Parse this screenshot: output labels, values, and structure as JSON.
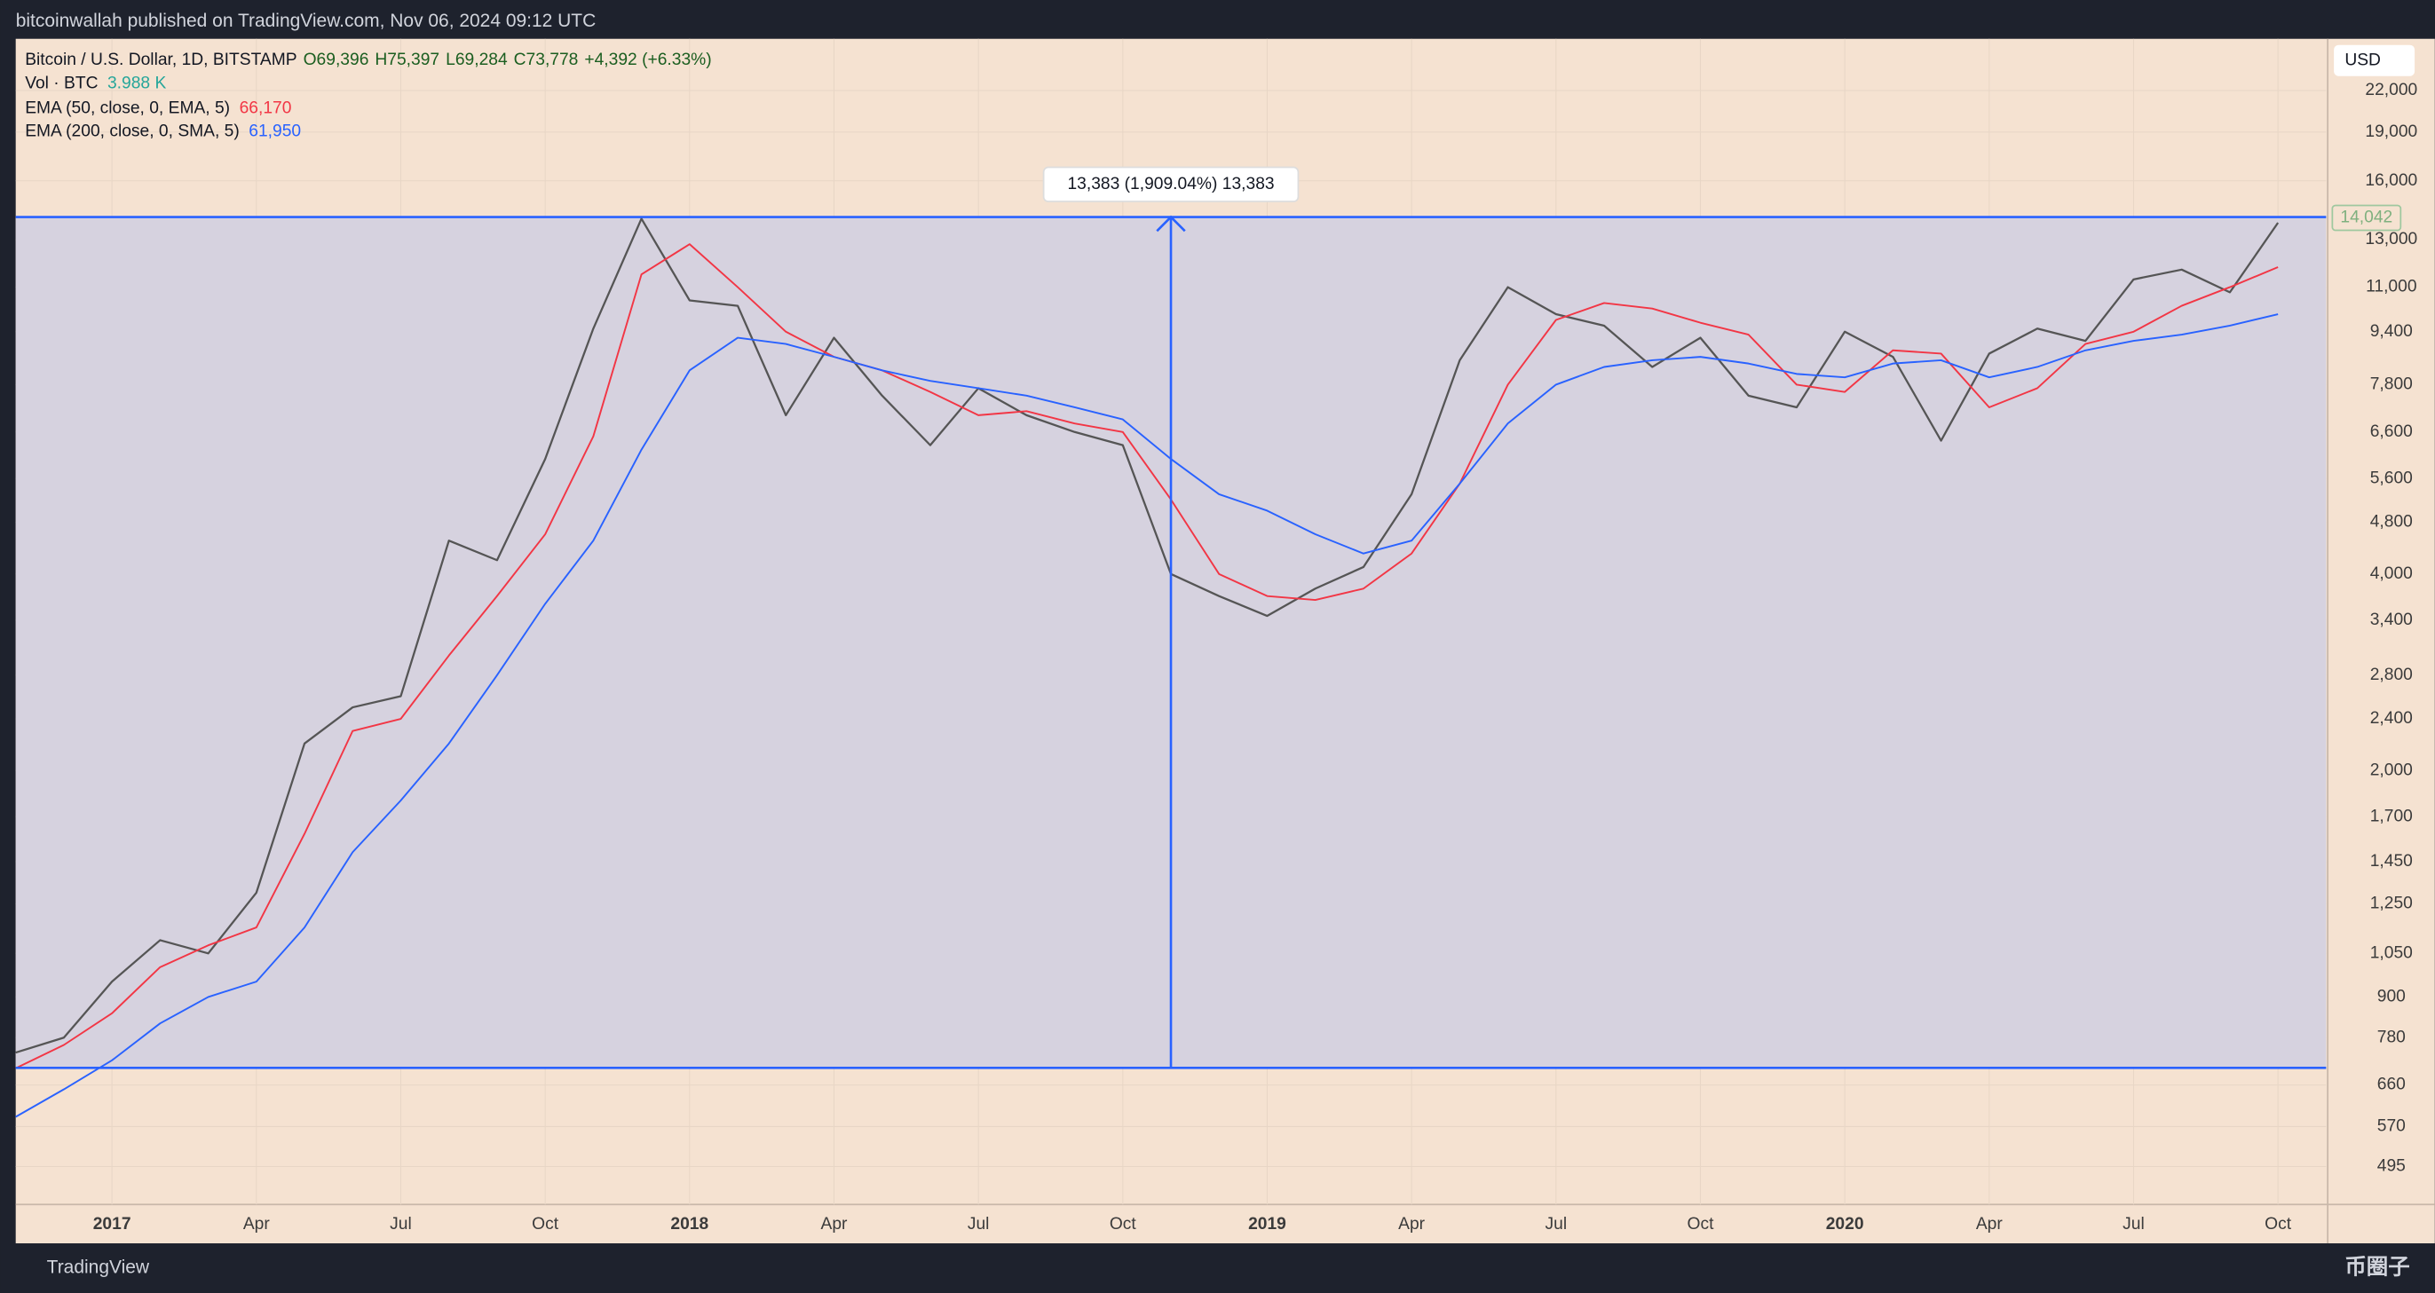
{
  "header": {
    "publisher": "bitcoinwallah published on TradingView.com, Nov 06, 2024 09:12 UTC"
  },
  "footer": {
    "brand": "TradingView",
    "watermark": "币圈子"
  },
  "chart_data": {
    "type": "line",
    "log_scale": true,
    "grid": true,
    "axis_unit": "USD",
    "x": [
      "2016-11",
      "2016-12",
      "2017-01",
      "2017-02",
      "2017-03",
      "2017-04",
      "2017-05",
      "2017-06",
      "2017-07",
      "2017-08",
      "2017-09",
      "2017-10",
      "2017-11",
      "2017-12",
      "2018-01",
      "2018-02",
      "2018-03",
      "2018-04",
      "2018-05",
      "2018-06",
      "2018-07",
      "2018-08",
      "2018-09",
      "2018-10",
      "2018-11",
      "2018-12",
      "2019-01",
      "2019-02",
      "2019-03",
      "2019-04",
      "2019-05",
      "2019-06",
      "2019-07",
      "2019-08",
      "2019-09",
      "2019-10",
      "2019-11",
      "2019-12",
      "2020-01",
      "2020-02",
      "2020-03",
      "2020-04",
      "2020-05",
      "2020-06",
      "2020-07",
      "2020-08",
      "2020-09",
      "2020-10"
    ],
    "xlim": [
      "2016-11",
      "2020-11"
    ],
    "xticks": [
      {
        "value": "2017-01",
        "label": "2017"
      },
      {
        "value": "2017-04",
        "label": "Apr"
      },
      {
        "value": "2017-07",
        "label": "Jul"
      },
      {
        "value": "2017-10",
        "label": "Oct"
      },
      {
        "value": "2018-01",
        "label": "2018"
      },
      {
        "value": "2018-04",
        "label": "Apr"
      },
      {
        "value": "2018-07",
        "label": "Jul"
      },
      {
        "value": "2018-10",
        "label": "Oct"
      },
      {
        "value": "2019-01",
        "label": "2019"
      },
      {
        "value": "2019-04",
        "label": "Apr"
      },
      {
        "value": "2019-07",
        "label": "Jul"
      },
      {
        "value": "2019-10",
        "label": "Oct"
      },
      {
        "value": "2020-01",
        "label": "2020"
      },
      {
        "value": "2020-04",
        "label": "Apr"
      },
      {
        "value": "2020-07",
        "label": "Jul"
      },
      {
        "value": "2020-10",
        "label": "Oct"
      }
    ],
    "ylim": [
      433,
      26400
    ],
    "yticks": [
      {
        "value": 22000,
        "label": "22,000"
      },
      {
        "value": 19000,
        "label": "19,000"
      },
      {
        "value": 16000,
        "label": "16,000"
      },
      {
        "value": 13000,
        "label": "13,000"
      },
      {
        "value": 11000,
        "label": "11,000"
      },
      {
        "value": 9400,
        "label": "9,400"
      },
      {
        "value": 7800,
        "label": "7,800"
      },
      {
        "value": 6600,
        "label": "6,600"
      },
      {
        "value": 5600,
        "label": "5,600"
      },
      {
        "value": 4800,
        "label": "4,800"
      },
      {
        "value": 4000,
        "label": "4,000"
      },
      {
        "value": 3400,
        "label": "3,400"
      },
      {
        "value": 2800,
        "label": "2,800"
      },
      {
        "value": 2400,
        "label": "2,400"
      },
      {
        "value": 2000,
        "label": "2,000"
      },
      {
        "value": 1700,
        "label": "1,700"
      },
      {
        "value": 1450,
        "label": "1,450"
      },
      {
        "value": 1250,
        "label": "1,250"
      },
      {
        "value": 1050,
        "label": "1,050"
      },
      900,
      780,
      660,
      570,
      495
    ],
    "series": [
      {
        "name": "Bitcoin / U.S. Dollar, 1D, BITSTAMP",
        "color": "#555555",
        "ohlc": [
          "O69,396",
          "H75,397",
          "L69,284",
          "C73,778",
          "+4,392 (+6.33%)"
        ],
        "values": [
          740,
          780,
          950,
          1100,
          1050,
          1300,
          2200,
          2500,
          2600,
          4500,
          4200,
          6000,
          9500,
          14000,
          10500,
          10300,
          7000,
          9200,
          7500,
          6300,
          7700,
          7000,
          6600,
          6300,
          4000,
          3700,
          3450,
          3800,
          4100,
          5300,
          8500,
          11000,
          10000,
          9600,
          8300,
          9200,
          7500,
          7200,
          9400,
          8600,
          6400,
          8700,
          9500,
          9100,
          11300,
          11700,
          10800,
          13800
        ]
      },
      {
        "name": "EMA (50, close, 0, EMA, 5)",
        "color": "#f23645",
        "legend_value": "66,170",
        "values": [
          700,
          760,
          850,
          1000,
          1080,
          1150,
          1600,
          2300,
          2400,
          3000,
          3700,
          4600,
          6500,
          11500,
          12800,
          11000,
          9400,
          8600,
          8200,
          7600,
          7000,
          7100,
          6800,
          6600,
          5200,
          4000,
          3700,
          3650,
          3800,
          4300,
          5500,
          7800,
          9800,
          10400,
          10200,
          9700,
          9300,
          7800,
          7600,
          8800,
          8700,
          7200,
          7700,
          9000,
          9400,
          10300,
          11000,
          11800
        ]
      },
      {
        "name": "EMA (200, close, 0, SMA, 5)",
        "color": "#2962ff",
        "legend_value": "61,950",
        "values": [
          590,
          650,
          720,
          820,
          900,
          950,
          1150,
          1500,
          1800,
          2200,
          2800,
          3600,
          4500,
          6200,
          8200,
          9200,
          9000,
          8600,
          8200,
          7900,
          7700,
          7500,
          7200,
          6900,
          6000,
          5300,
          5000,
          4600,
          4300,
          4500,
          5500,
          6800,
          7800,
          8300,
          8500,
          8600,
          8400,
          8100,
          8000,
          8400,
          8500,
          8000,
          8300,
          8800,
          9100,
          9300,
          9600,
          10000
        ]
      }
    ],
    "volume": {
      "label": "Vol · BTC",
      "value": "3.988 K"
    },
    "range": {
      "low": 701,
      "high": 14084,
      "x": "2018-11",
      "label": "13,383 (1,909.04%) 13,383",
      "color": "#2962ff"
    },
    "last_price": {
      "value": 14042,
      "label": "14,042"
    }
  }
}
